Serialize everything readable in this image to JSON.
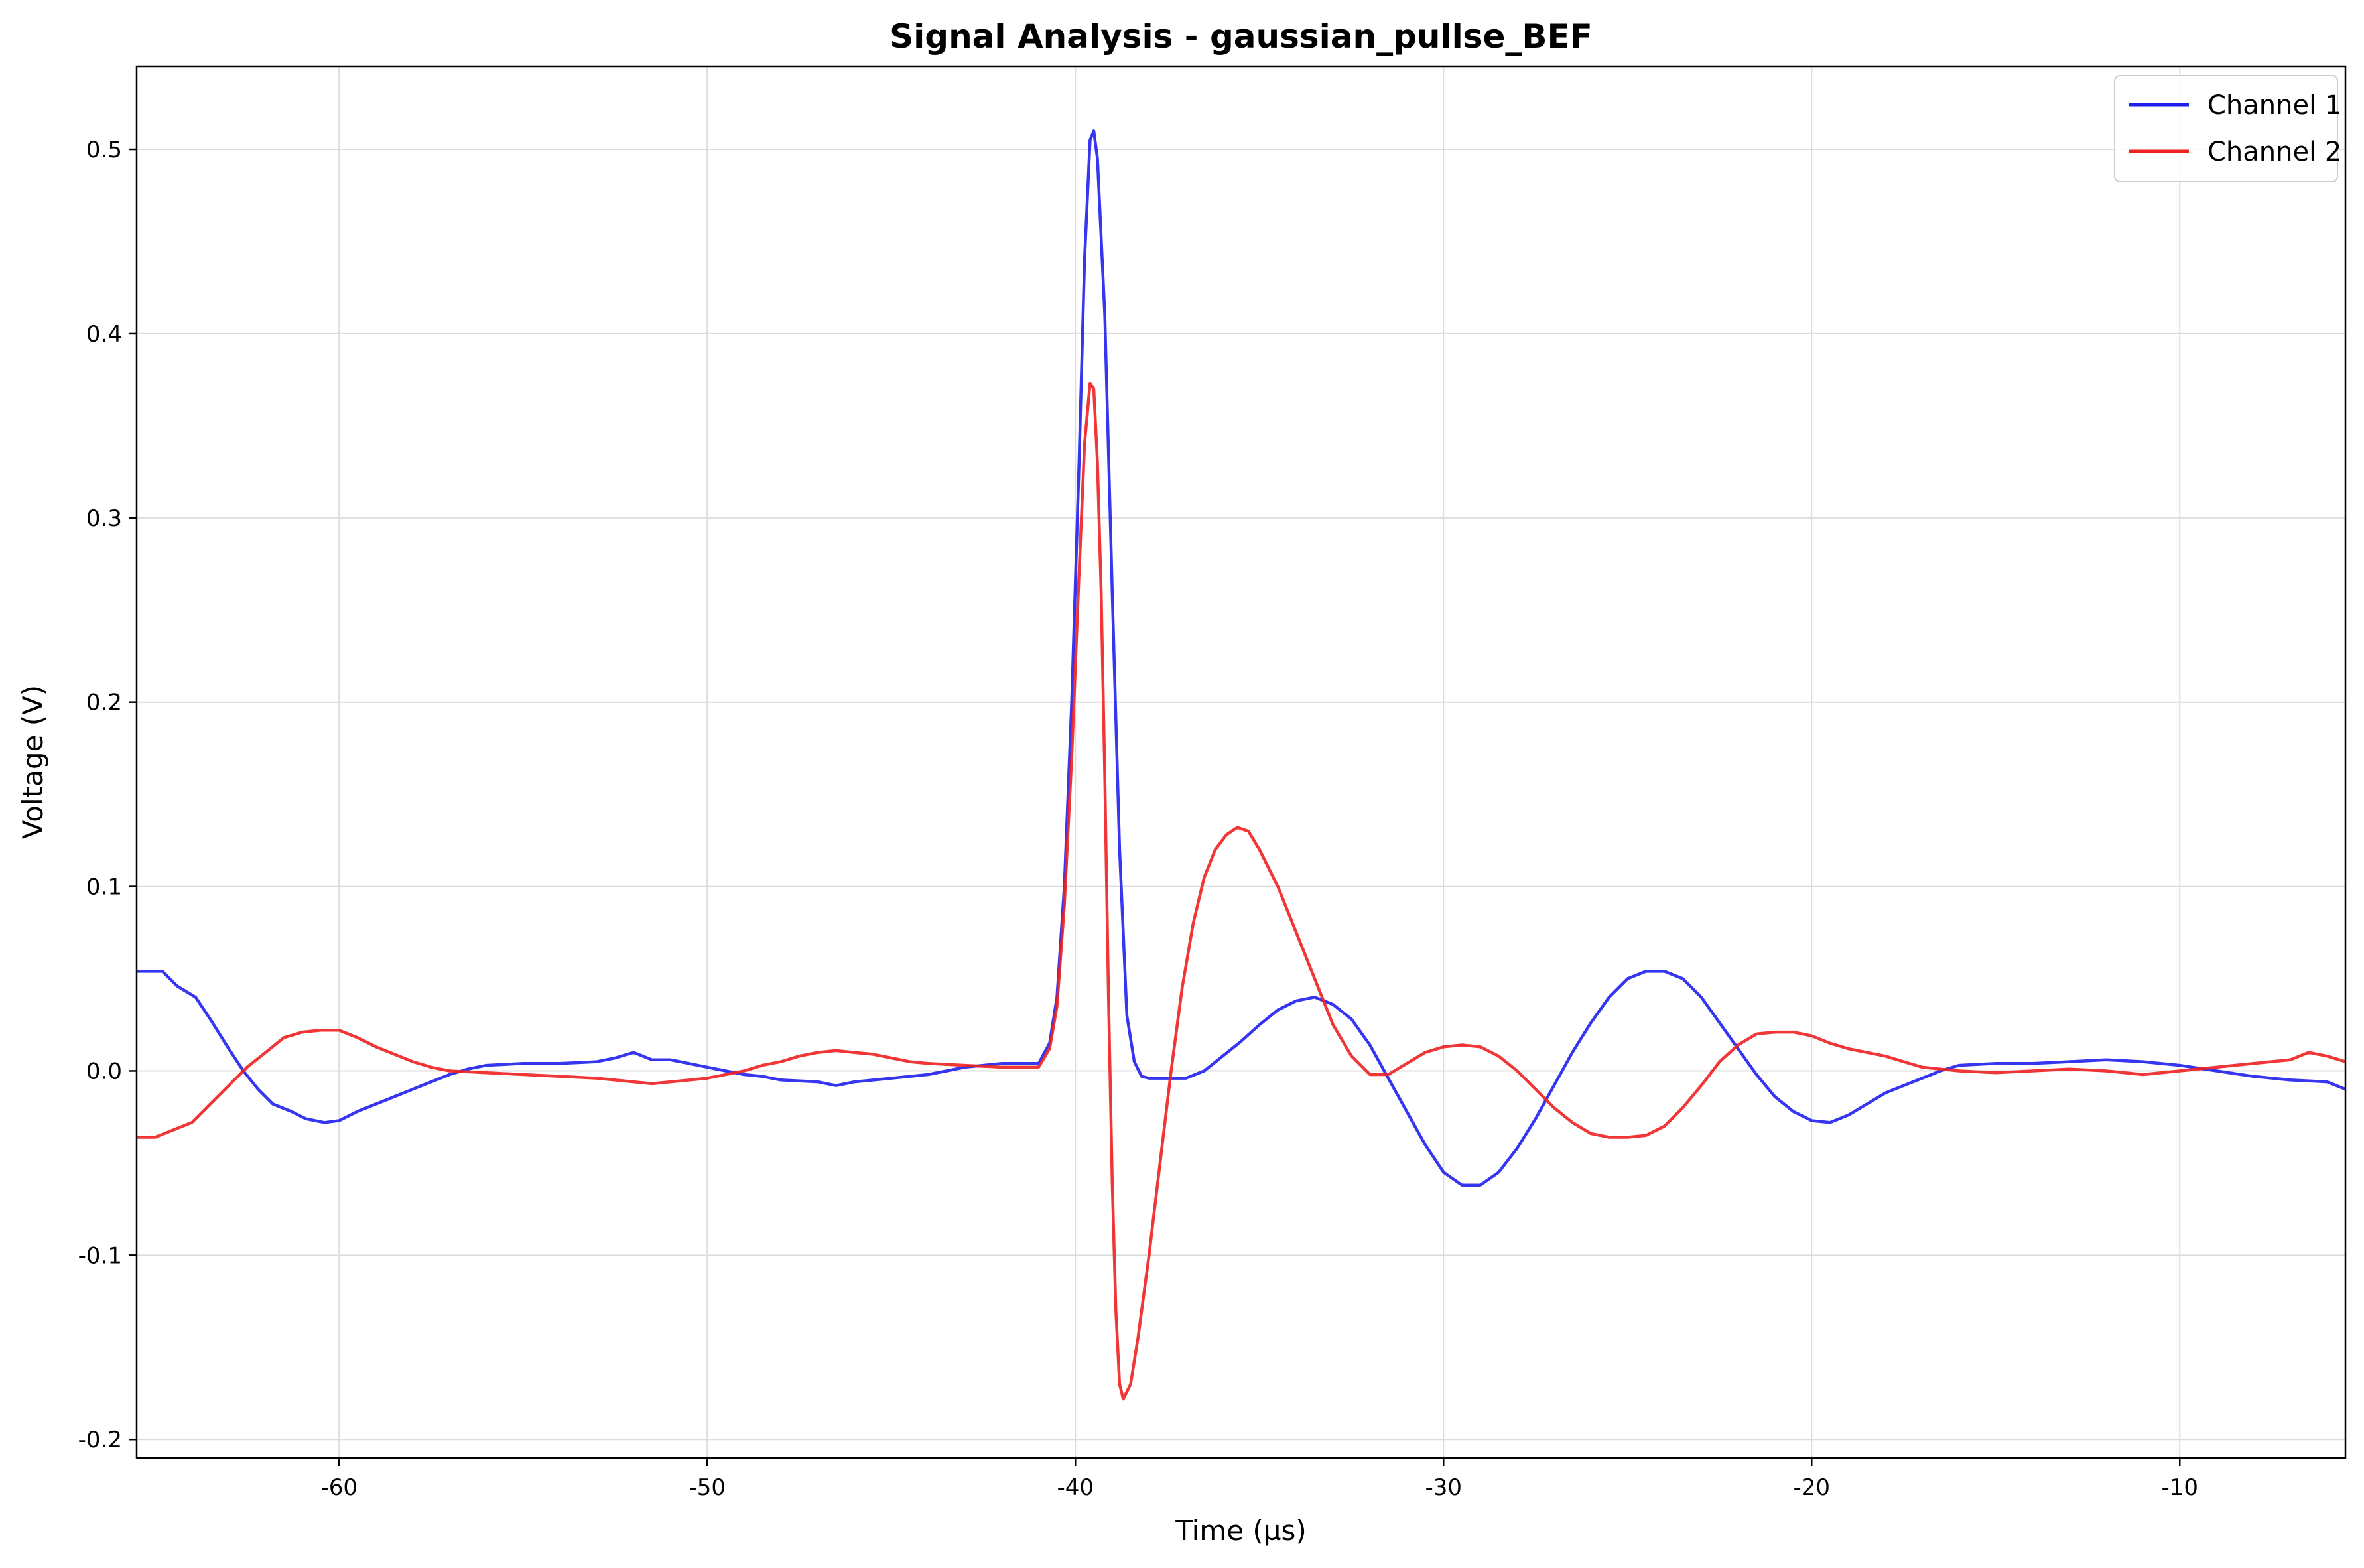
{
  "chart_data": {
    "type": "line",
    "title": "Signal Analysis - gaussian_pullse_BEF",
    "xlabel": "Time (µs)",
    "ylabel": "Voltage (V)",
    "xlim": [
      -65.5,
      -5.5
    ],
    "ylim": [
      -0.21,
      0.545
    ],
    "xticks": [
      -60,
      -50,
      -40,
      -30,
      -20,
      -10
    ],
    "xtick_labels": [
      "-60",
      "-50",
      "-40",
      "-30",
      "-20",
      "-10"
    ],
    "yticks": [
      -0.2,
      -0.1,
      0.0,
      0.1,
      0.2,
      0.3,
      0.4,
      0.5
    ],
    "ytick_labels": [
      "-0.2",
      "-0.1",
      "0.0",
      "0.1",
      "0.2",
      "0.3",
      "0.4",
      "0.5"
    ],
    "grid": true,
    "legend_position": "top-right",
    "series": [
      {
        "name": "Channel 1",
        "color": "#2020ee",
        "points": [
          [
            -65.5,
            0.054
          ],
          [
            -64.8,
            0.054
          ],
          [
            -64.4,
            0.046
          ],
          [
            -63.9,
            0.04
          ],
          [
            -63.5,
            0.028
          ],
          [
            -63.0,
            0.012
          ],
          [
            -62.6,
            0.0
          ],
          [
            -62.2,
            -0.01
          ],
          [
            -61.8,
            -0.018
          ],
          [
            -61.3,
            -0.022
          ],
          [
            -60.9,
            -0.026
          ],
          [
            -60.4,
            -0.028
          ],
          [
            -60.0,
            -0.027
          ],
          [
            -59.5,
            -0.022
          ],
          [
            -59.0,
            -0.018
          ],
          [
            -58.5,
            -0.014
          ],
          [
            -58.0,
            -0.01
          ],
          [
            -57.5,
            -0.006
          ],
          [
            -57.0,
            -0.002
          ],
          [
            -56.5,
            0.001
          ],
          [
            -56.0,
            0.003
          ],
          [
            -55.0,
            0.004
          ],
          [
            -54.0,
            0.004
          ],
          [
            -53.0,
            0.005
          ],
          [
            -52.5,
            0.007
          ],
          [
            -52.0,
            0.01
          ],
          [
            -51.5,
            0.006
          ],
          [
            -51.0,
            0.006
          ],
          [
            -50.5,
            0.004
          ],
          [
            -50.0,
            0.002
          ],
          [
            -49.5,
            0.0
          ],
          [
            -49.0,
            -0.002
          ],
          [
            -48.5,
            -0.003
          ],
          [
            -48.0,
            -0.005
          ],
          [
            -47.0,
            -0.006
          ],
          [
            -46.5,
            -0.008
          ],
          [
            -46.0,
            -0.006
          ],
          [
            -45.0,
            -0.004
          ],
          [
            -44.0,
            -0.002
          ],
          [
            -43.5,
            0.0
          ],
          [
            -43.0,
            0.002
          ],
          [
            -42.5,
            0.003
          ],
          [
            -42.0,
            0.004
          ],
          [
            -41.5,
            0.004
          ],
          [
            -41.0,
            0.004
          ],
          [
            -40.7,
            0.015
          ],
          [
            -40.5,
            0.04
          ],
          [
            -40.3,
            0.1
          ],
          [
            -40.1,
            0.2
          ],
          [
            -39.9,
            0.33
          ],
          [
            -39.75,
            0.44
          ],
          [
            -39.6,
            0.505
          ],
          [
            -39.5,
            0.51
          ],
          [
            -39.4,
            0.495
          ],
          [
            -39.2,
            0.41
          ],
          [
            -39.0,
            0.26
          ],
          [
            -38.8,
            0.12
          ],
          [
            -38.6,
            0.03
          ],
          [
            -38.4,
            0.005
          ],
          [
            -38.2,
            -0.003
          ],
          [
            -38.0,
            -0.004
          ],
          [
            -37.5,
            -0.004
          ],
          [
            -37.0,
            -0.004
          ],
          [
            -36.5,
            0.0
          ],
          [
            -36.0,
            0.008
          ],
          [
            -35.5,
            0.016
          ],
          [
            -35.0,
            0.025
          ],
          [
            -34.5,
            0.033
          ],
          [
            -34.0,
            0.038
          ],
          [
            -33.5,
            0.04
          ],
          [
            -33.0,
            0.036
          ],
          [
            -32.5,
            0.028
          ],
          [
            -32.0,
            0.014
          ],
          [
            -31.5,
            -0.004
          ],
          [
            -31.0,
            -0.022
          ],
          [
            -30.5,
            -0.04
          ],
          [
            -30.0,
            -0.055
          ],
          [
            -29.5,
            -0.062
          ],
          [
            -29.0,
            -0.062
          ],
          [
            -28.5,
            -0.055
          ],
          [
            -28.0,
            -0.042
          ],
          [
            -27.5,
            -0.026
          ],
          [
            -27.0,
            -0.008
          ],
          [
            -26.5,
            0.01
          ],
          [
            -26.0,
            0.026
          ],
          [
            -25.5,
            0.04
          ],
          [
            -25.0,
            0.05
          ],
          [
            -24.5,
            0.054
          ],
          [
            -24.0,
            0.054
          ],
          [
            -23.5,
            0.05
          ],
          [
            -23.0,
            0.04
          ],
          [
            -22.5,
            0.026
          ],
          [
            -22.0,
            0.012
          ],
          [
            -21.5,
            -0.002
          ],
          [
            -21.0,
            -0.014
          ],
          [
            -20.5,
            -0.022
          ],
          [
            -20.0,
            -0.027
          ],
          [
            -19.5,
            -0.028
          ],
          [
            -19.0,
            -0.024
          ],
          [
            -18.5,
            -0.018
          ],
          [
            -18.0,
            -0.012
          ],
          [
            -17.5,
            -0.008
          ],
          [
            -17.0,
            -0.004
          ],
          [
            -16.5,
            0.0
          ],
          [
            -16.0,
            0.003
          ],
          [
            -15.0,
            0.004
          ],
          [
            -14.0,
            0.004
          ],
          [
            -13.0,
            0.005
          ],
          [
            -12.0,
            0.006
          ],
          [
            -11.0,
            0.005
          ],
          [
            -10.0,
            0.003
          ],
          [
            -9.0,
            0.0
          ],
          [
            -8.0,
            -0.003
          ],
          [
            -7.0,
            -0.005
          ],
          [
            -6.0,
            -0.006
          ],
          [
            -5.5,
            -0.01
          ]
        ]
      },
      {
        "name": "Channel 2",
        "color": "#ee2020",
        "points": [
          [
            -65.5,
            -0.036
          ],
          [
            -65.0,
            -0.036
          ],
          [
            -64.5,
            -0.032
          ],
          [
            -64.0,
            -0.028
          ],
          [
            -63.5,
            -0.018
          ],
          [
            -63.0,
            -0.008
          ],
          [
            -62.5,
            0.002
          ],
          [
            -62.0,
            0.01
          ],
          [
            -61.5,
            0.018
          ],
          [
            -61.0,
            0.021
          ],
          [
            -60.5,
            0.022
          ],
          [
            -60.0,
            0.022
          ],
          [
            -59.5,
            0.018
          ],
          [
            -59.0,
            0.013
          ],
          [
            -58.5,
            0.009
          ],
          [
            -58.0,
            0.005
          ],
          [
            -57.5,
            0.002
          ],
          [
            -57.0,
            0.0
          ],
          [
            -56.0,
            -0.001
          ],
          [
            -55.0,
            -0.002
          ],
          [
            -54.0,
            -0.003
          ],
          [
            -53.0,
            -0.004
          ],
          [
            -52.0,
            -0.006
          ],
          [
            -51.5,
            -0.007
          ],
          [
            -51.0,
            -0.006
          ],
          [
            -50.0,
            -0.004
          ],
          [
            -49.0,
            0.0
          ],
          [
            -48.5,
            0.003
          ],
          [
            -48.0,
            0.005
          ],
          [
            -47.5,
            0.008
          ],
          [
            -47.0,
            0.01
          ],
          [
            -46.5,
            0.011
          ],
          [
            -46.0,
            0.01
          ],
          [
            -45.5,
            0.009
          ],
          [
            -45.0,
            0.007
          ],
          [
            -44.5,
            0.005
          ],
          [
            -44.0,
            0.004
          ],
          [
            -43.0,
            0.003
          ],
          [
            -42.0,
            0.002
          ],
          [
            -41.0,
            0.002
          ],
          [
            -40.7,
            0.012
          ],
          [
            -40.5,
            0.035
          ],
          [
            -40.3,
            0.09
          ],
          [
            -40.1,
            0.17
          ],
          [
            -39.9,
            0.27
          ],
          [
            -39.75,
            0.34
          ],
          [
            -39.6,
            0.373
          ],
          [
            -39.5,
            0.37
          ],
          [
            -39.4,
            0.33
          ],
          [
            -39.3,
            0.26
          ],
          [
            -39.2,
            0.16
          ],
          [
            -39.1,
            0.04
          ],
          [
            -39.0,
            -0.06
          ],
          [
            -38.9,
            -0.13
          ],
          [
            -38.8,
            -0.17
          ],
          [
            -38.7,
            -0.178
          ],
          [
            -38.5,
            -0.17
          ],
          [
            -38.3,
            -0.145
          ],
          [
            -38.0,
            -0.1
          ],
          [
            -37.7,
            -0.05
          ],
          [
            -37.4,
            0.0
          ],
          [
            -37.1,
            0.045
          ],
          [
            -36.8,
            0.08
          ],
          [
            -36.5,
            0.105
          ],
          [
            -36.2,
            0.12
          ],
          [
            -35.9,
            0.128
          ],
          [
            -35.6,
            0.132
          ],
          [
            -35.3,
            0.13
          ],
          [
            -35.0,
            0.12
          ],
          [
            -34.5,
            0.1
          ],
          [
            -34.0,
            0.075
          ],
          [
            -33.5,
            0.05
          ],
          [
            -33.0,
            0.025
          ],
          [
            -32.5,
            0.008
          ],
          [
            -32.0,
            -0.002
          ],
          [
            -31.5,
            -0.002
          ],
          [
            -31.0,
            0.004
          ],
          [
            -30.5,
            0.01
          ],
          [
            -30.0,
            0.013
          ],
          [
            -29.5,
            0.014
          ],
          [
            -29.0,
            0.013
          ],
          [
            -28.5,
            0.008
          ],
          [
            -28.0,
            0.0
          ],
          [
            -27.5,
            -0.01
          ],
          [
            -27.0,
            -0.02
          ],
          [
            -26.5,
            -0.028
          ],
          [
            -26.0,
            -0.034
          ],
          [
            -25.5,
            -0.036
          ],
          [
            -25.0,
            -0.036
          ],
          [
            -24.5,
            -0.035
          ],
          [
            -24.0,
            -0.03
          ],
          [
            -23.5,
            -0.02
          ],
          [
            -23.0,
            -0.008
          ],
          [
            -22.5,
            0.005
          ],
          [
            -22.0,
            0.014
          ],
          [
            -21.5,
            0.02
          ],
          [
            -21.0,
            0.021
          ],
          [
            -20.5,
            0.021
          ],
          [
            -20.0,
            0.019
          ],
          [
            -19.5,
            0.015
          ],
          [
            -19.0,
            0.012
          ],
          [
            -18.5,
            0.01
          ],
          [
            -18.0,
            0.008
          ],
          [
            -17.5,
            0.005
          ],
          [
            -17.0,
            0.002
          ],
          [
            -16.0,
            0.0
          ],
          [
            -15.0,
            -0.001
          ],
          [
            -14.0,
            0.0
          ],
          [
            -13.0,
            0.001
          ],
          [
            -12.0,
            0.0
          ],
          [
            -11.0,
            -0.002
          ],
          [
            -10.0,
            0.0
          ],
          [
            -9.0,
            0.002
          ],
          [
            -8.0,
            0.004
          ],
          [
            -7.0,
            0.006
          ],
          [
            -6.5,
            0.01
          ],
          [
            -6.0,
            0.008
          ],
          [
            -5.5,
            0.005
          ]
        ]
      }
    ]
  }
}
